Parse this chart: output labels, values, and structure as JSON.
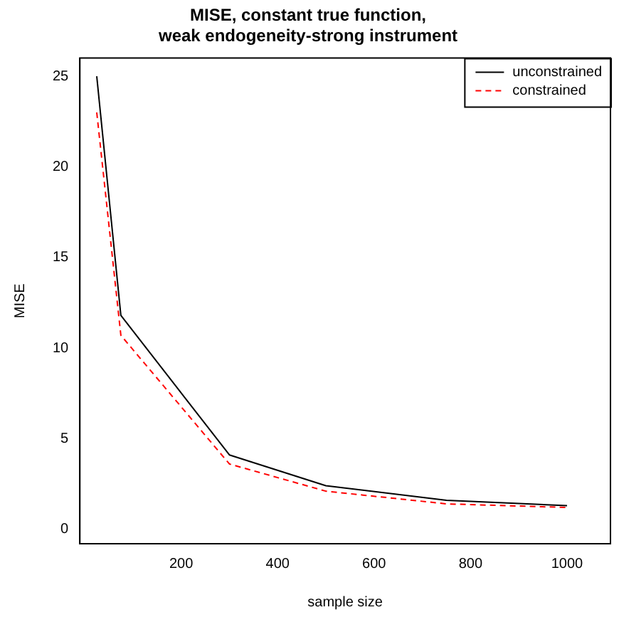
{
  "chart_data": {
    "type": "line",
    "title": "MISE, constant true function,\nweak endogeneity-strong instrument",
    "xlabel": "sample size",
    "ylabel": "MISE",
    "x": [
      25,
      75,
      300,
      500,
      750,
      1000
    ],
    "series": [
      {
        "name": "unconstrained",
        "color": "#000000",
        "line_style": "solid",
        "values": [
          25.0,
          11.8,
          4.1,
          2.4,
          1.6,
          1.3
        ]
      },
      {
        "name": "constrained",
        "color": "#ff0000",
        "line_style": "dashed",
        "values": [
          23.0,
          10.7,
          3.6,
          2.1,
          1.4,
          1.2
        ]
      }
    ],
    "xlim": [
      -10,
      1090
    ],
    "xticks": [
      200,
      400,
      600,
      800,
      1000
    ],
    "ylim": [
      -0.8,
      26
    ],
    "yticks": [
      0,
      5,
      10,
      15,
      20,
      25
    ],
    "legend": "top right",
    "marker": "none",
    "grid": false
  }
}
